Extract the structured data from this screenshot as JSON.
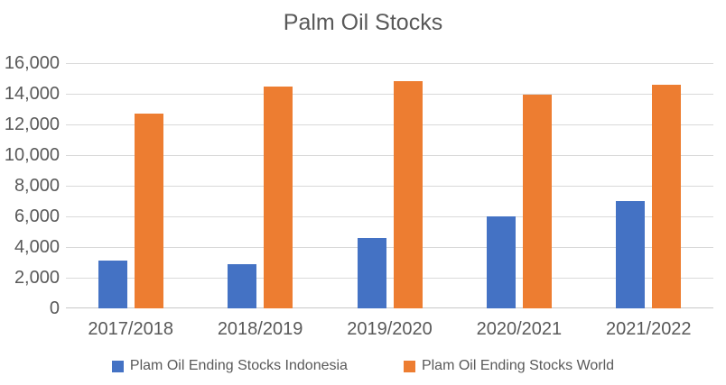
{
  "title": "Palm Oil Stocks",
  "colors": {
    "series_indonesia": "#4472C4",
    "series_world": "#ED7D31",
    "text": "#595959",
    "gridline": "#D9D9D9",
    "axis_line": "#C8C8C8",
    "background": "#FFFFFF"
  },
  "chart_data": {
    "type": "bar",
    "title": "Palm Oil Stocks",
    "categories": [
      "2017/2018",
      "2018/2019",
      "2019/2020",
      "2020/2021",
      "2021/2022"
    ],
    "series": [
      {
        "name": "Plam Oil Ending Stocks Indonesia",
        "key": "indonesia",
        "color": "#4472C4",
        "values": [
          3100,
          2900,
          4600,
          6000,
          7000
        ]
      },
      {
        "name": "Plam Oil Ending Stocks World",
        "key": "world",
        "color": "#ED7D31",
        "values": [
          12700,
          14500,
          14800,
          13950,
          14600
        ]
      }
    ],
    "xlabel": "",
    "ylabel": "",
    "ylim": [
      0,
      16000
    ],
    "ytick_step": 2000,
    "ytick_labels": [
      "0",
      "2,000",
      "4,000",
      "6,000",
      "8,000",
      "10,000",
      "12,000",
      "14,000",
      "16,000"
    ],
    "grid": true,
    "legend_position": "bottom"
  }
}
